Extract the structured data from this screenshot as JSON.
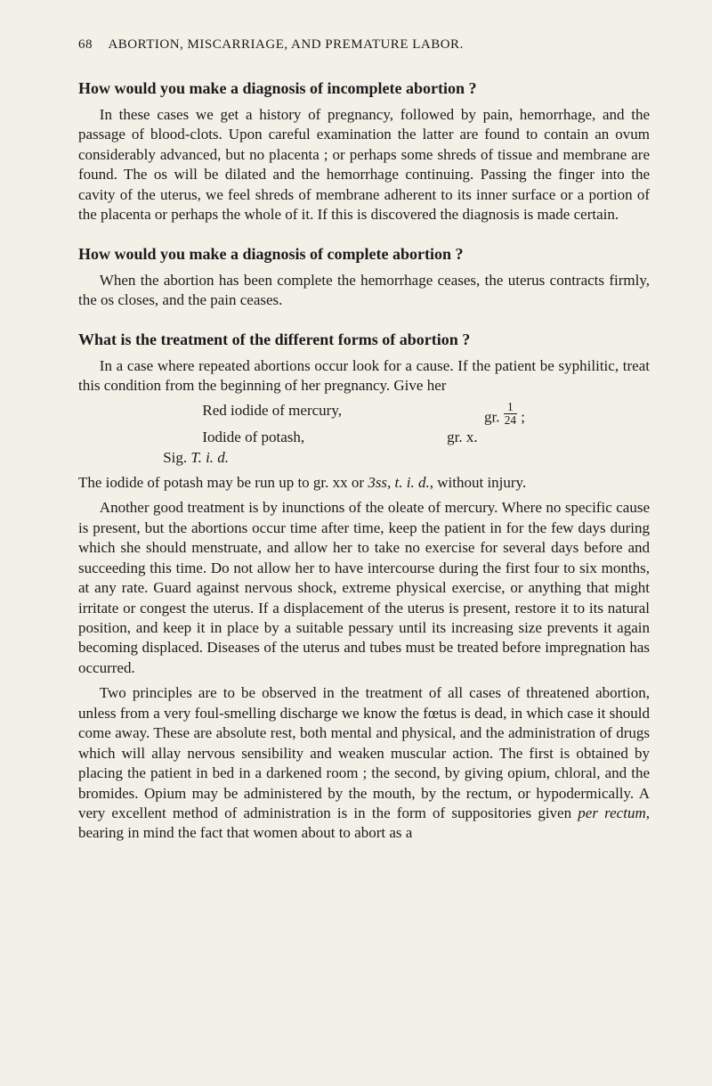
{
  "page": {
    "number": "68",
    "running_title": "ABORTION, MISCARRIAGE, AND PREMATURE LABOR."
  },
  "q1": {
    "heading": "How would you make a diagnosis of incomplete abortion ?",
    "para": "In these cases we get a history of pregnancy, followed by pain, hemorrhage, and the passage of blood-clots. Upon careful examination the latter are found to contain an ovum considerably advanced, but no placenta ; or perhaps some shreds of tissue and membrane are found. The os will be dilated and the hemorrhage continuing. Passing the finger into the cavity of the uterus, we feel shreds of membrane adherent to its inner surface or a portion of the placenta or perhaps the whole of it. If this is discovered the diagnosis is made certain."
  },
  "q2": {
    "heading": "How would you make a diagnosis of complete abortion ?",
    "para": "When the abortion has been complete the hemorrhage ceases, the uterus contracts firmly, the os closes, and the pain ceases."
  },
  "q3": {
    "heading": "What is the treatment of the different forms of abortion ?",
    "intro": "In a case where repeated abortions occur look for a cause. If the patient be syphilitic, treat this condition from the beginning of her pregnancy. Give her",
    "rx": {
      "line1_left": "Red iodide of mercury,",
      "line1_right_pre": "gr. ",
      "line1_frac_num": "1",
      "line1_frac_den": "24",
      "line1_right_post": " ;",
      "line2_left": "Iodide of potash,",
      "line2_right": "gr. x.",
      "sig_pre": "Sig. ",
      "sig_ital": "T. i. d."
    },
    "post_rx_pre": "The iodide of potash may be run up to gr. xx or ",
    "post_rx_ital": "3ss, t. i. d.",
    "post_rx_post": ", without injury.",
    "p2": "Another good treatment is by inunctions of the oleate of mercury. Where no specific cause is present, but the abortions occur time after time, keep the patient in for the few days during which she should menstruate, and allow her to take no exercise for several days before and succeeding this time. Do not allow her to have intercourse during the first four to six months, at any rate. Guard against nervous shock, extreme physical exercise, or anything that might irritate or congest the uterus. If a displacement of the uterus is present, restore it to its natural position, and keep it in place by a suitable pessary until its increasing size prevents it again becoming displaced. Diseases of the uterus and tubes must be treated before impregnation has occurred.",
    "p3_a": "Two principles are to be observed in the treatment of all cases of threatened abortion, unless from a very foul-smelling discharge we know the fœtus is dead, in which case it should come away. These are absolute rest, both mental and physical, and the administration of drugs which will allay nervous sensibility and weaken muscular action. The first is obtained by placing the patient in bed in a darkened room ; the second, by giving opium, chloral, and the bromides. Opium may be administered by the mouth, by the rectum, or hypodermically. A very excellent method of administration is in the form of suppositories given ",
    "p3_ital": "per rectum",
    "p3_b": ", bearing in mind the fact that women about to abort as a"
  }
}
